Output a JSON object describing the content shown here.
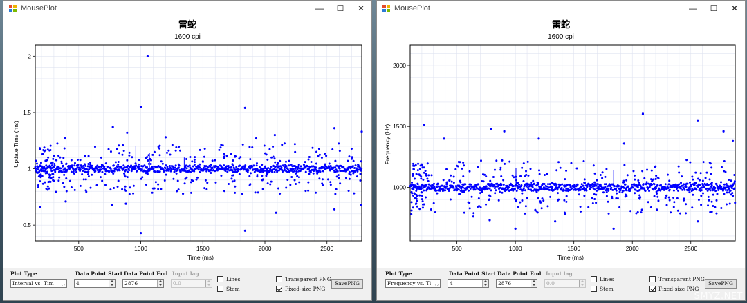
{
  "windows": [
    {
      "title": "MousePlot",
      "controls_glyphs": {
        "minimize": "—",
        "maximize": "☐",
        "close": "✕"
      },
      "chart_data": {
        "type": "scatter",
        "title": "雷蛇",
        "subtitle": "1600 cpi",
        "xlabel": "Time (ms)",
        "ylabel": "Update Time (ms)",
        "xlim": [
          150,
          2780
        ],
        "ylim": [
          0.36,
          2.1
        ],
        "xticks": [
          500,
          1000,
          1500,
          2000,
          2500
        ],
        "yticks": [
          0.5,
          1,
          1.5,
          2
        ],
        "ytick_labels": [
          "0.5",
          "1",
          "1.5",
          "2"
        ],
        "baseline": 1.0,
        "band_halfwidth": 0.03,
        "scatter_halfwidth": 0.22,
        "spike_halfwidth": 0.12,
        "outliers": [
          [
            1055,
            2.0
          ],
          [
            1000,
            1.55
          ],
          [
            1840,
            1.54
          ],
          [
            1000,
            0.43
          ],
          [
            1840,
            0.45
          ],
          [
            775,
            1.37
          ],
          [
            890,
            1.32
          ],
          [
            2560,
            1.36
          ],
          [
            2780,
            1.33
          ],
          [
            390,
            1.27
          ],
          [
            1200,
            1.28
          ],
          [
            1930,
            1.27
          ],
          [
            2080,
            1.3
          ],
          [
            395,
            0.71
          ],
          [
            770,
            0.68
          ],
          [
            880,
            0.69
          ],
          [
            2090,
            0.61
          ],
          [
            2560,
            0.64
          ],
          [
            2775,
            0.68
          ],
          [
            190,
            0.66
          ],
          [
            1340,
            0.78
          ]
        ],
        "spikes": [
          [
            960,
            1.2
          ],
          [
            1070,
            1.14
          ],
          [
            1350,
            1.1
          ]
        ],
        "grid": true,
        "marker_color": "#0000ff"
      },
      "controls": {
        "plot_type_label": "Plot Type",
        "plot_type_value": "Interval vs. Tim",
        "start_label": "Data Point Start",
        "start_value": "4",
        "end_label": "Data Point End",
        "end_value": "2876",
        "lag_label": "Input lag",
        "lag_value": "0.0",
        "lines_label": "Lines",
        "lines_checked": false,
        "stem_label": "Stem",
        "stem_checked": false,
        "transparent_label": "Transparent PNG",
        "transparent_checked": false,
        "fixed_label": "Fixed-size PNG",
        "fixed_checked": true,
        "save_label": "SavePNG"
      }
    },
    {
      "title": "MousePlot",
      "controls_glyphs": {
        "minimize": "—",
        "maximize": "☐",
        "close": "✕"
      },
      "chart_data": {
        "type": "scatter",
        "title": "雷蛇",
        "subtitle": "1600 cpi",
        "xlabel": "Time (ms)",
        "ylabel": "Frequency (Hz)",
        "xlim": [
          100,
          2880
        ],
        "ylim": [
          560,
          2170
        ],
        "xticks": [
          500,
          1000,
          1500,
          2000,
          2500
        ],
        "yticks": [
          1000,
          1500,
          2000
        ],
        "ytick_labels": [
          "1000",
          "1500",
          "2000"
        ],
        "baseline": 1000,
        "band_halfwidth": 30,
        "scatter_halfwidth": 220,
        "spike_halfwidth": 120,
        "outliers": [
          [
            220,
            1515
          ],
          [
            2090,
            1610
          ],
          [
            2560,
            1545
          ],
          [
            790,
            1480
          ],
          [
            905,
            1460
          ],
          [
            2780,
            1460
          ],
          [
            1000,
            660
          ],
          [
            1840,
            660
          ],
          [
            390,
            1400
          ],
          [
            1200,
            1400
          ],
          [
            1930,
            1360
          ],
          [
            2860,
            1380
          ],
          [
            2090,
            1600
          ],
          [
            780,
            730
          ],
          [
            2560,
            720
          ],
          [
            1340,
            720
          ],
          [
            640,
            760
          ]
        ],
        "spikes": [
          [
            1005,
            1160
          ],
          [
            1840,
            1140
          ],
          [
            2090,
            1060
          ]
        ],
        "grid": true,
        "marker_color": "#0000ff"
      },
      "controls": {
        "plot_type_label": "Plot Type",
        "plot_type_value": "Frequency vs. Ti",
        "start_label": "Data Point Start",
        "start_value": "4",
        "end_label": "Data Point End",
        "end_value": "2876",
        "lag_label": "Input lag",
        "lag_value": "0.0",
        "lines_label": "Lines",
        "lines_checked": false,
        "stem_label": "Stem",
        "stem_checked": false,
        "transparent_label": "Transparent PNG",
        "transparent_checked": false,
        "fixed_label": "Fixed-size PNG",
        "fixed_checked": true,
        "save_label": "SavePNG"
      }
    }
  ],
  "watermark": "SMYZ.NET"
}
